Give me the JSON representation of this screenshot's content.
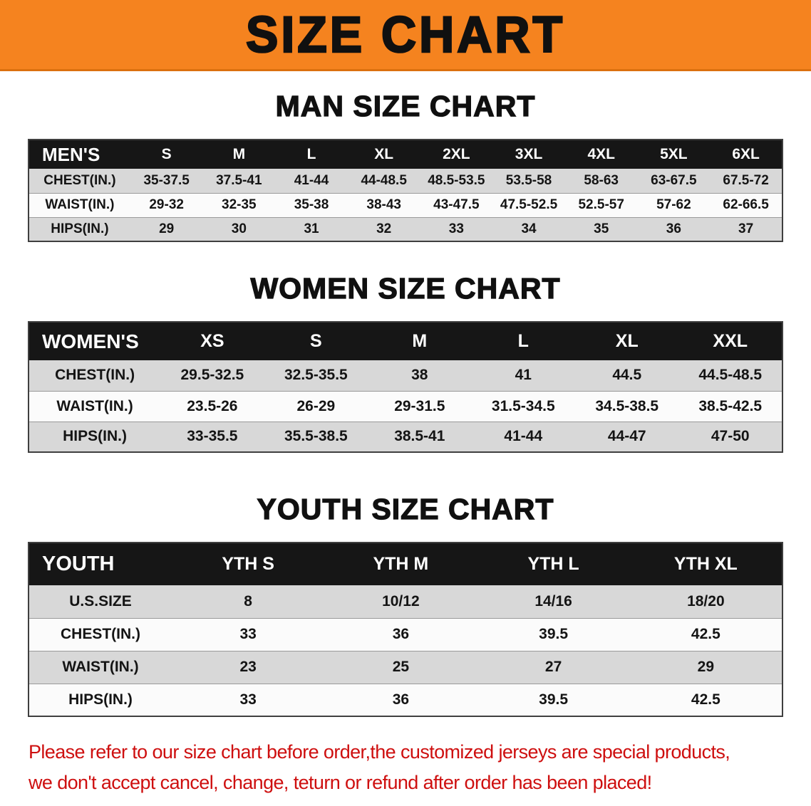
{
  "page": {
    "title": "SIZE CHART",
    "colors": {
      "banner_bg": "#F5831F",
      "header_bar": "#161616",
      "row_gray": "#D8D8D8",
      "footer_red": "#CE0F0F"
    }
  },
  "sections": [
    {
      "heading": "MAN SIZE CHART",
      "table": {
        "header": [
          "MEN'S",
          "S",
          "M",
          "L",
          "XL",
          "2XL",
          "3XL",
          "4XL",
          "5XL",
          "6XL"
        ],
        "rows": [
          [
            "CHEST(IN.)",
            "35-37.5",
            "37.5-41",
            "41-44",
            "44-48.5",
            "48.5-53.5",
            "53.5-58",
            "58-63",
            "63-67.5",
            "67.5-72"
          ],
          [
            "WAIST(IN.)",
            "29-32",
            "32-35",
            "35-38",
            "38-43",
            "43-47.5",
            "47.5-52.5",
            "52.5-57",
            "57-62",
            "62-66.5"
          ],
          [
            "HIPS(IN.)",
            "29",
            "30",
            "31",
            "32",
            "33",
            "34",
            "35",
            "36",
            "37"
          ]
        ]
      }
    },
    {
      "heading": "WOMEN SIZE CHART",
      "table": {
        "header": [
          "WOMEN'S",
          "XS",
          "S",
          "M",
          "L",
          "XL",
          "XXL"
        ],
        "rows": [
          [
            "CHEST(IN.)",
            "29.5-32.5",
            "32.5-35.5",
            "38",
            "41",
            "44.5",
            "44.5-48.5"
          ],
          [
            "WAIST(IN.)",
            "23.5-26",
            "26-29",
            "29-31.5",
            "31.5-34.5",
            "34.5-38.5",
            "38.5-42.5"
          ],
          [
            "HIPS(IN.)",
            "33-35.5",
            "35.5-38.5",
            "38.5-41",
            "41-44",
            "44-47",
            "47-50"
          ]
        ]
      }
    },
    {
      "heading": "YOUTH SIZE CHART",
      "table": {
        "header": [
          "YOUTH",
          "YTH S",
          "YTH M",
          "YTH L",
          "YTH XL"
        ],
        "rows": [
          [
            "U.S.SIZE",
            "8",
            "10/12",
            "14/16",
            "18/20"
          ],
          [
            "CHEST(IN.)",
            "33",
            "36",
            "39.5",
            "42.5"
          ],
          [
            "WAIST(IN.)",
            "23",
            "25",
            "27",
            "29"
          ],
          [
            "HIPS(IN.)",
            "33",
            "36",
            "39.5",
            "42.5"
          ]
        ]
      }
    }
  ],
  "footer": {
    "line1": "Please refer to our size chart before order,the customized jerseys are special products,",
    "line2": "we don't accept cancel, change, teturn or refund after order has been placed!"
  }
}
